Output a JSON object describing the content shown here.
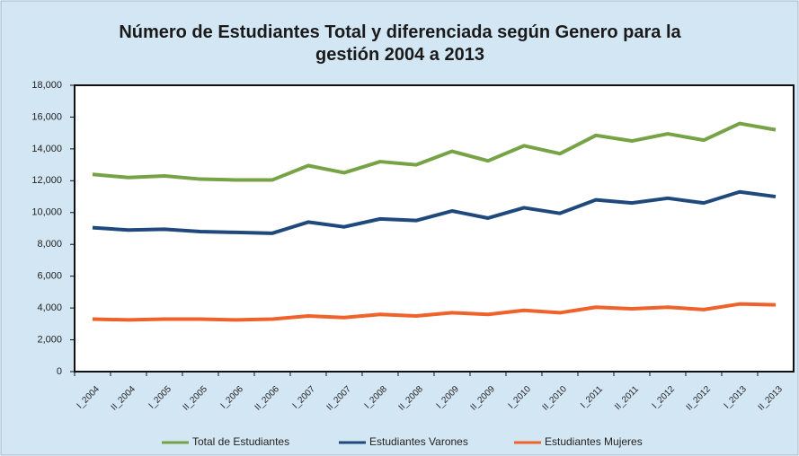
{
  "chart_data": {
    "type": "line",
    "title": "Número de Estudiantes Total y diferenciada según Genero para la gestión 2004 a 2013",
    "categories": [
      "I_2004",
      "II_2004",
      "I_2005",
      "II_2005",
      "I_2006",
      "II_2006",
      "I_2007",
      "II_2007",
      "I_2008",
      "II_2008",
      "I_2009",
      "II_2009",
      "I_2010",
      "II_2010",
      "I_2011",
      "II_2011",
      "I_2012",
      "II_2012",
      "I_2013",
      "II_2013"
    ],
    "series": [
      {
        "name": "Total de Estudiantes",
        "color": "#77a347",
        "values": [
          12400,
          12200,
          12300,
          12100,
          12050,
          12050,
          12950,
          12500,
          13200,
          13000,
          13850,
          13250,
          14200,
          13700,
          14850,
          14500,
          14950,
          14550,
          15600,
          15200
        ]
      },
      {
        "name": "Estudiantes Varones",
        "color": "#1f497d",
        "values": [
          9050,
          8900,
          8950,
          8800,
          8750,
          8700,
          9400,
          9100,
          9600,
          9500,
          10100,
          9650,
          10300,
          9950,
          10800,
          10600,
          10900,
          10600,
          11300,
          11000
        ]
      },
      {
        "name": "Estudiantes Mujeres",
        "color": "#f0622b",
        "values": [
          3300,
          3250,
          3300,
          3300,
          3250,
          3300,
          3500,
          3400,
          3600,
          3500,
          3700,
          3600,
          3850,
          3700,
          4050,
          3950,
          4050,
          3900,
          4250,
          4200
        ]
      }
    ],
    "ylim": [
      0,
      18000
    ],
    "yticks": [
      0,
      {
        "value": 2000,
        "label": "2,000"
      },
      {
        "value": 4000,
        "label": "4,000"
      },
      {
        "value": 6000,
        "label": "6,000"
      },
      {
        "value": 8000,
        "label": "8,000"
      },
      {
        "value": 10000,
        "label": "10,000"
      },
      {
        "value": 12000,
        "label": "12,000"
      },
      {
        "value": 14000,
        "label": "14,000"
      },
      {
        "value": 16000,
        "label": "16,000"
      },
      {
        "value": 18000,
        "label": "18,000"
      }
    ],
    "legend": "bottom"
  }
}
